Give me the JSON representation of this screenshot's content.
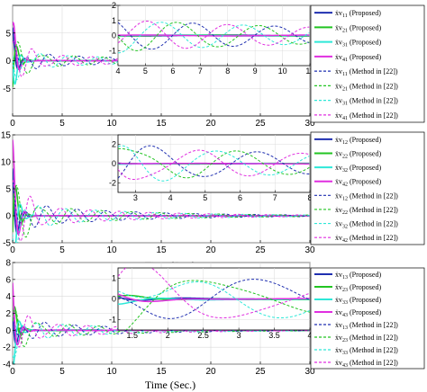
{
  "chart_data": [
    {
      "type": "line",
      "xlabel": "Time (Sec.)",
      "xlim": [
        0,
        30
      ],
      "ylim": [
        -10,
        10
      ],
      "xticks": [
        0,
        5,
        10,
        15,
        20,
        25,
        30
      ],
      "yticks": [
        -5,
        0,
        5
      ],
      "inset": {
        "xlim": [
          4,
          11
        ],
        "ylim": [
          -2,
          2
        ],
        "xticks": [
          4,
          5,
          6,
          7,
          8,
          9,
          10,
          11
        ],
        "yticks": [
          -1,
          0,
          1,
          2
        ]
      },
      "legend": [
        {
          "base": "ẋv",
          "sub": "11",
          "suffix": " (Proposed)",
          "color": "#1f2fb0",
          "dash": false
        },
        {
          "base": "ẋv",
          "sub": "21",
          "suffix": " (Proposed)",
          "color": "#22c422",
          "dash": false
        },
        {
          "base": "ẋv",
          "sub": "31",
          "suffix": " (Proposed)",
          "color": "#2ee8d8",
          "dash": false
        },
        {
          "base": "ẋv",
          "sub": "41",
          "suffix": " (Proposed)",
          "color": "#e02fe0",
          "dash": false
        },
        {
          "base": "ẋv",
          "sub": "11",
          "suffix": " (Method in [22])",
          "color": "#1f2fb0",
          "dash": true
        },
        {
          "base": "ẋv",
          "sub": "21",
          "suffix": " (Method in [22])",
          "color": "#22c422",
          "dash": true
        },
        {
          "base": "ẋv",
          "sub": "31",
          "suffix": " (Method in [22])",
          "color": "#2ee8d8",
          "dash": true
        },
        {
          "base": "ẋv",
          "sub": "41",
          "suffix": " (Method in [22])",
          "color": "#e02fe0",
          "dash": true
        }
      ]
    },
    {
      "type": "line",
      "xlabel": "Time (Sec.)",
      "xlim": [
        0,
        30
      ],
      "ylim": [
        -5,
        15
      ],
      "xticks": [
        0,
        5,
        10,
        15,
        20,
        25,
        30
      ],
      "yticks": [
        -5,
        0,
        5,
        10,
        15
      ],
      "inset": {
        "xlim": [
          2.5,
          8
        ],
        "ylim": [
          -3,
          3
        ],
        "xticks": [
          3,
          4,
          5,
          6,
          7,
          8
        ],
        "yticks": [
          -2,
          0,
          2
        ]
      },
      "legend": [
        {
          "base": "ẋv",
          "sub": "12",
          "suffix": " (Proposed)",
          "color": "#1f2fb0",
          "dash": false
        },
        {
          "base": "ẋv",
          "sub": "22",
          "suffix": " (Proposed)",
          "color": "#22c422",
          "dash": false
        },
        {
          "base": "ẋv",
          "sub": "32",
          "suffix": " (Proposed)",
          "color": "#2ee8d8",
          "dash": false
        },
        {
          "base": "ẋv",
          "sub": "42",
          "suffix": " (Proposed)",
          "color": "#e02fe0",
          "dash": false
        },
        {
          "base": "ẋv",
          "sub": "12",
          "suffix": " (Method in [22])",
          "color": "#1f2fb0",
          "dash": true
        },
        {
          "base": "ẋv",
          "sub": "22",
          "suffix": " (Method in [22])",
          "color": "#22c422",
          "dash": true
        },
        {
          "base": "ẋv",
          "sub": "32",
          "suffix": " (Method in [22])",
          "color": "#2ee8d8",
          "dash": true
        },
        {
          "base": "ẋv",
          "sub": "42",
          "suffix": " (Method in [22])",
          "color": "#e02fe0",
          "dash": true
        }
      ]
    },
    {
      "type": "line",
      "xlabel": "Time (Sec.)",
      "xlim": [
        0,
        30
      ],
      "ylim": [
        -4,
        8
      ],
      "xticks": [
        0,
        5,
        10,
        15,
        20,
        25,
        30
      ],
      "yticks": [
        -4,
        -2,
        0,
        2,
        4,
        6,
        8
      ],
      "inset": {
        "xlim": [
          1.3,
          4
        ],
        "ylim": [
          -1.5,
          1.5
        ],
        "xticks": [
          1.5,
          2,
          2.5,
          3,
          3.5,
          4
        ],
        "yticks": [
          -1,
          0,
          1
        ]
      },
      "legend": [
        {
          "base": "ẋv",
          "sub": "13",
          "suffix": " (Proposed)",
          "color": "#1f2fb0",
          "dash": false
        },
        {
          "base": "ẋv",
          "sub": "23",
          "suffix": " (Proposed)",
          "color": "#22c422",
          "dash": false
        },
        {
          "base": "ẋv",
          "sub": "33",
          "suffix": " (Proposed)",
          "color": "#2ee8d8",
          "dash": false
        },
        {
          "base": "ẋv",
          "sub": "43",
          "suffix": " (Proposed)",
          "color": "#e02fe0",
          "dash": false
        },
        {
          "base": "ẋv",
          "sub": "13",
          "suffix": " (Method in [22])",
          "color": "#1f2fb0",
          "dash": true
        },
        {
          "base": "ẋv",
          "sub": "23",
          "suffix": " (Method in [22])",
          "color": "#22c422",
          "dash": true
        },
        {
          "base": "ẋv",
          "sub": "33",
          "suffix": " (Method in [22])",
          "color": "#2ee8d8",
          "dash": true
        },
        {
          "base": "ẋv",
          "sub": "43",
          "suffix": " (Method in [22])",
          "color": "#e02fe0",
          "dash": true
        }
      ]
    }
  ]
}
